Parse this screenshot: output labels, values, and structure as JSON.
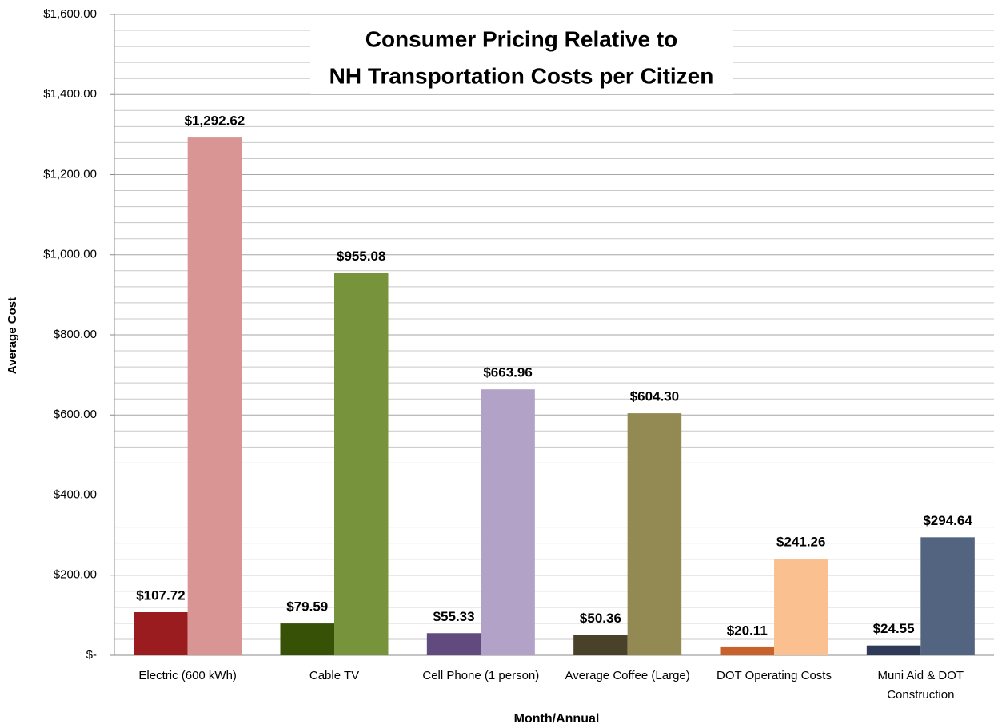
{
  "chart_data": {
    "type": "bar",
    "title": [
      "Consumer Pricing Relative to",
      "NH Transportation Costs per Citizen"
    ],
    "x_label": "Month/Annual",
    "y_label": "Average Cost",
    "categories": [
      "Electric (600 kWh)",
      "Cable TV",
      "Cell Phone (1 person)",
      "Average Coffee (Large)",
      "DOT Operating Costs",
      "Muni Aid & DOT Construction"
    ],
    "series": [
      {
        "colors": [
          "#9b1c1f",
          "#375106",
          "#614a7e",
          "#4a412a",
          "#c9622a",
          "#2f3a58"
        ],
        "values": [
          107.72,
          79.59,
          55.33,
          50.36,
          20.11,
          24.55
        ],
        "value_labels": [
          "$107.72",
          "$79.59",
          "$55.33",
          "$50.36",
          "$20.11",
          "$24.55"
        ]
      },
      {
        "colors": [
          "#d99594",
          "#77933c",
          "#b2a2c7",
          "#938953",
          "#fac090",
          "#536480"
        ],
        "values": [
          1292.62,
          955.08,
          663.96,
          604.3,
          241.26,
          294.64
        ],
        "value_labels": [
          "$1,292.62",
          "$955.08",
          "$663.96",
          "$604.30",
          "$241.26",
          "$294.64"
        ]
      }
    ],
    "ylim": [
      0,
      1600
    ],
    "yticks": [
      {
        "value": 0,
        "label": "$-"
      },
      {
        "value": 200,
        "label": "$200.00"
      },
      {
        "value": 400,
        "label": "$400.00"
      },
      {
        "value": 600,
        "label": "$600.00"
      },
      {
        "value": 800,
        "label": "$800.00"
      },
      {
        "value": 1000,
        "label": "$1,000.00"
      },
      {
        "value": 1200,
        "label": "$1,200.00"
      },
      {
        "value": 1400,
        "label": "$1,400.00"
      },
      {
        "value": 1600,
        "label": "$1,600.00"
      }
    ],
    "minor_yticks": [
      40,
      80,
      120,
      160,
      240,
      280,
      320,
      360,
      440,
      480,
      520,
      560,
      640,
      680,
      720,
      760,
      840,
      880,
      920,
      960,
      1040,
      1080,
      1120,
      1160,
      1240,
      1280,
      1320,
      1360,
      1440,
      1480,
      1520,
      1560
    ],
    "grid": true
  }
}
